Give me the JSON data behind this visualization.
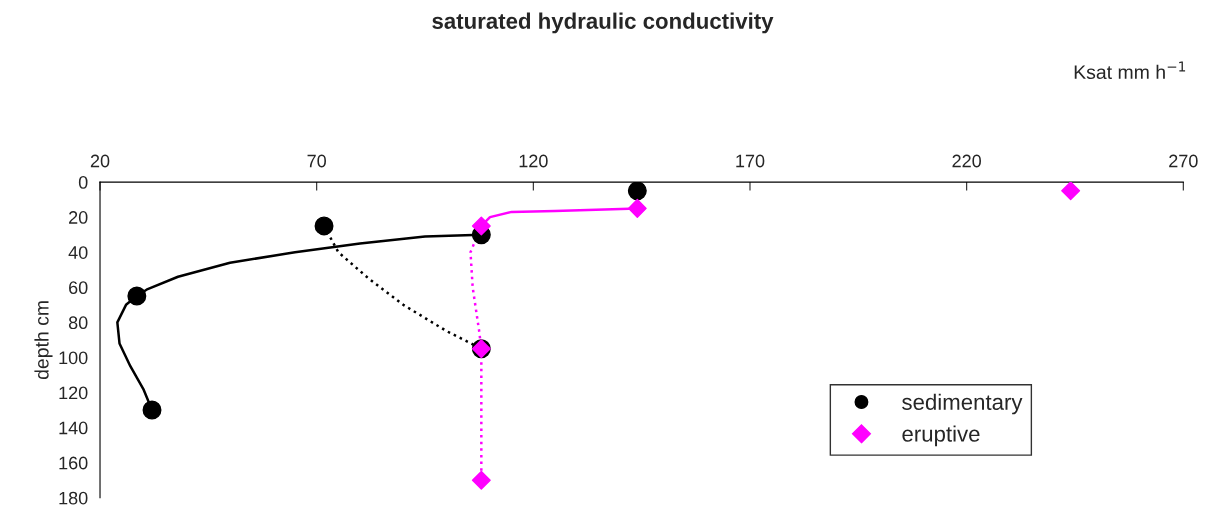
{
  "chart_data": {
    "type": "scatter",
    "title": "saturated hydraulic conductivity",
    "xlabel": "Ksat mm h$^{−1}$",
    "ylabel": "depth cm",
    "xlim": [
      20,
      270
    ],
    "xticks": [
      20,
      70,
      120,
      170,
      220,
      270
    ],
    "ylim": [
      180,
      0
    ],
    "yticks": [
      0,
      20,
      40,
      60,
      80,
      100,
      120,
      140,
      160,
      180
    ],
    "grid": false,
    "legend": "bottom right",
    "series": [
      {
        "name": "sedimentary",
        "color": "#000000",
        "marker": "circle",
        "x": [
          144,
          71.7,
          108,
          28.5,
          32,
          108
        ],
        "values": [
          5,
          25,
          30,
          65,
          130,
          95
        ]
      },
      {
        "name": "eruptive",
        "color": "#ff00ff",
        "marker": "diamond",
        "x": [
          244,
          144,
          108,
          108,
          108
        ],
        "values": [
          5,
          15,
          25,
          95,
          170
        ]
      },
      {
        "type": "line",
        "color": "#000000",
        "line_style": "solid",
        "x": [
          108,
          95,
          80,
          65,
          50,
          38,
          31,
          28.5,
          26,
          24,
          24.5,
          27,
          30,
          32
        ],
        "values": [
          30,
          31,
          35,
          40,
          46,
          54,
          61,
          65,
          70,
          80,
          92,
          105,
          118,
          130
        ]
      },
      {
        "type": "line",
        "color": "#000000",
        "line_style": "dotted",
        "x": [
          71.7,
          75,
          82,
          90,
          100,
          108
        ],
        "values": [
          25,
          40,
          55,
          70,
          85,
          95
        ]
      },
      {
        "type": "line",
        "color": "#ff00ff",
        "line_style": "solid",
        "x": [
          144,
          125,
          115,
          110,
          108
        ],
        "values": [
          15,
          16.5,
          17,
          20,
          25
        ]
      },
      {
        "type": "line",
        "color": "#ff00ff",
        "line_style": "dotted",
        "x": [
          108,
          105.5,
          106,
          107.5,
          108,
          108
        ],
        "values": [
          25,
          40,
          60,
          85,
          95,
          170
        ]
      }
    ]
  }
}
